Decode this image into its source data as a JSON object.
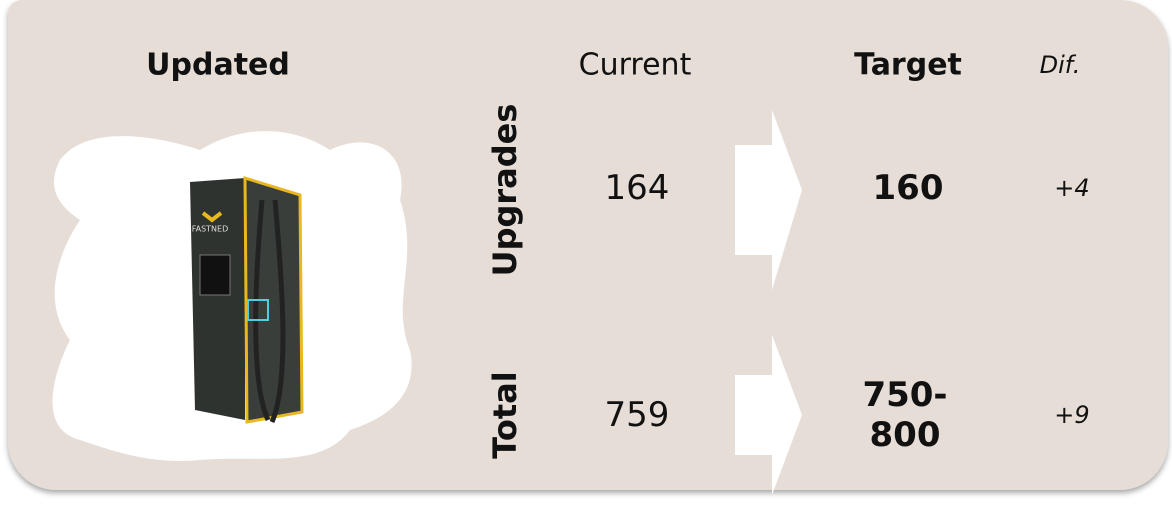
{
  "header": {
    "title": "Updated",
    "current": "Current",
    "target": "Target",
    "diff": "Dif."
  },
  "image": {
    "brand": "FASTNED"
  },
  "rows": [
    {
      "label": "Upgrades",
      "current": "164",
      "target": "160",
      "diff": "+4"
    },
    {
      "label": "Total",
      "current": "759",
      "target": "750-800",
      "diff": "+9"
    }
  ]
}
